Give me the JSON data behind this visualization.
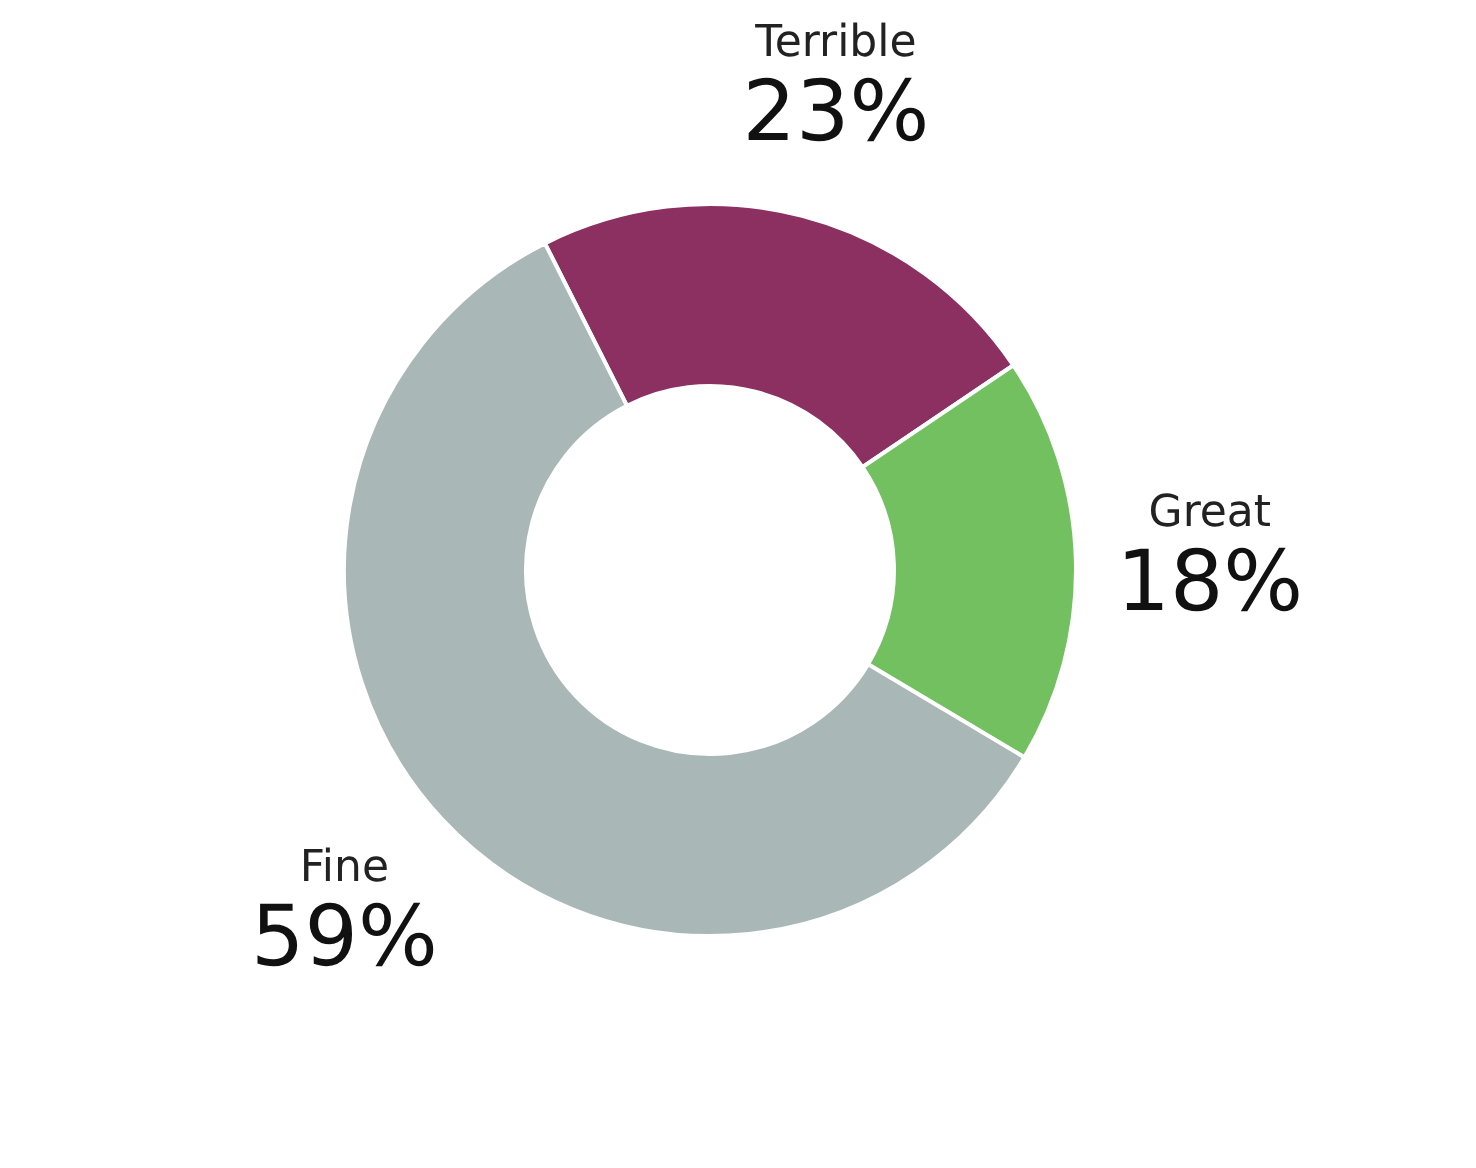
{
  "chart_data": {
    "type": "donut",
    "categories": [
      "Terrible",
      "Great",
      "Fine"
    ],
    "values": [
      23,
      18,
      59
    ],
    "colors": [
      "#8b3060",
      "#72c060",
      "#a9b8b6"
    ],
    "value_labels": [
      "23%",
      "18%",
      "59%"
    ],
    "legend": false
  }
}
